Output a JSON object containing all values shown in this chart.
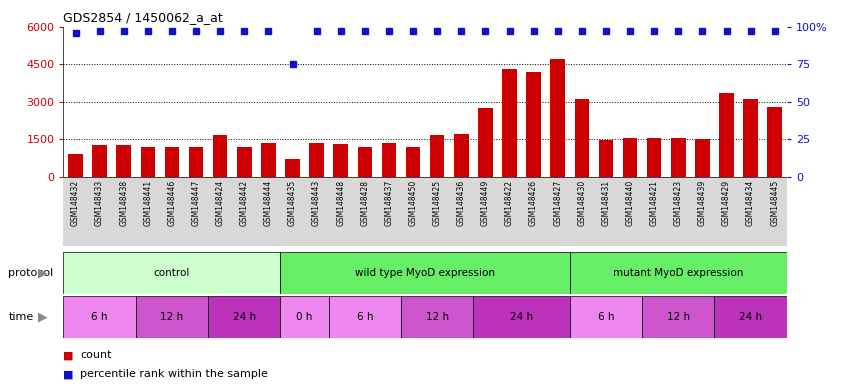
{
  "title": "GDS2854 / 1450062_a_at",
  "samples": [
    "GSM148432",
    "GSM148433",
    "GSM148438",
    "GSM148441",
    "GSM148446",
    "GSM148447",
    "GSM148424",
    "GSM148442",
    "GSM148444",
    "GSM148435",
    "GSM148443",
    "GSM148448",
    "GSM148428",
    "GSM148437",
    "GSM148450",
    "GSM148425",
    "GSM148436",
    "GSM148449",
    "GSM148422",
    "GSM148426",
    "GSM148427",
    "GSM148430",
    "GSM148431",
    "GSM148440",
    "GSM148421",
    "GSM148423",
    "GSM148439",
    "GSM148429",
    "GSM148434",
    "GSM148445"
  ],
  "counts": [
    900,
    1250,
    1250,
    1200,
    1200,
    1200,
    1650,
    1200,
    1350,
    700,
    1350,
    1300,
    1200,
    1350,
    1200,
    1650,
    1700,
    2750,
    4300,
    4200,
    4700,
    3100,
    1450,
    1550,
    1550,
    1550,
    1500,
    3350,
    3100,
    2800
  ],
  "percentile_ranks": [
    96,
    97,
    97,
    97,
    97,
    97,
    97,
    97,
    97,
    75,
    97,
    97,
    97,
    97,
    97,
    97,
    97,
    97,
    97,
    97,
    97,
    97,
    97,
    97,
    97,
    97,
    97,
    97,
    97,
    97
  ],
  "bar_color": "#cc0000",
  "dot_color": "#1010cc",
  "ylim_left": [
    0,
    6000
  ],
  "ylim_right": [
    0,
    100
  ],
  "yticks_left": [
    0,
    1500,
    3000,
    4500,
    6000
  ],
  "yticks_right": [
    0,
    25,
    50,
    75,
    100
  ],
  "grid_values": [
    1500,
    3000,
    4500
  ],
  "protocols": [
    {
      "label": "control",
      "start": 0,
      "end": 9,
      "color": "#ccffcc"
    },
    {
      "label": "wild type MyoD expression",
      "start": 9,
      "end": 21,
      "color": "#66ee66"
    },
    {
      "label": "mutant MyoD expression",
      "start": 21,
      "end": 30,
      "color": "#66ee66"
    }
  ],
  "times": [
    {
      "label": "6 h",
      "start": 0,
      "end": 3,
      "color": "#ee88ee"
    },
    {
      "label": "12 h",
      "start": 3,
      "end": 6,
      "color": "#cc55cc"
    },
    {
      "label": "24 h",
      "start": 6,
      "end": 9,
      "color": "#bb33bb"
    },
    {
      "label": "0 h",
      "start": 9,
      "end": 11,
      "color": "#ee88ee"
    },
    {
      "label": "6 h",
      "start": 11,
      "end": 14,
      "color": "#ee88ee"
    },
    {
      "label": "12 h",
      "start": 14,
      "end": 17,
      "color": "#cc55cc"
    },
    {
      "label": "24 h",
      "start": 17,
      "end": 21,
      "color": "#bb33bb"
    },
    {
      "label": "6 h",
      "start": 21,
      "end": 24,
      "color": "#ee88ee"
    },
    {
      "label": "12 h",
      "start": 24,
      "end": 27,
      "color": "#cc55cc"
    },
    {
      "label": "24 h",
      "start": 27,
      "end": 30,
      "color": "#bb33bb"
    }
  ],
  "protocol_label": "protocol",
  "time_label": "time",
  "legend_count": "count",
  "legend_pct": "percentile rank within the sample",
  "bg_color": "#ffffff",
  "label_area_color": "#cccccc",
  "dot_size": 5
}
